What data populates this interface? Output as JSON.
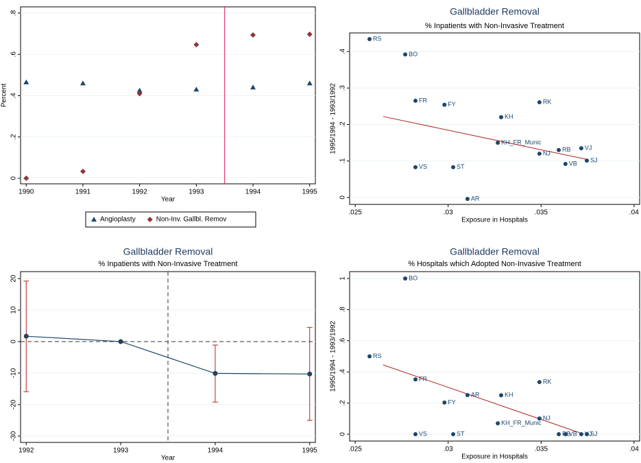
{
  "chart_data": [
    {
      "type": "scatter",
      "x_label": "Year",
      "y_label": "Percent",
      "x": [
        1990,
        1991,
        1992,
        1993,
        1994,
        1995
      ],
      "series": [
        {
          "name": "Angioplasty",
          "color": "#1a476f",
          "marker": "triangle",
          "values": [
            0.465,
            0.46,
            0.425,
            0.43,
            0.44,
            0.46
          ]
        },
        {
          "name": "Non-Inv. Gallbl. Remov",
          "color": "#90353b",
          "marker": "diamond",
          "values": [
            0,
            0.033,
            0.41,
            0.647,
            0.694,
            0.697
          ]
        }
      ],
      "xlim": [
        1989.9,
        1995.1
      ],
      "xticks": [
        1990,
        1991,
        1992,
        1993,
        1994,
        1995
      ],
      "ylim": [
        -0.027,
        0.83
      ],
      "yticks": [
        0,
        {
          "value": 0.2,
          "label": ".2"
        },
        {
          "value": 0.4,
          "label": ".4"
        },
        {
          "value": 0.6,
          "label": ".6"
        },
        {
          "value": 0.8,
          "label": ".8"
        }
      ],
      "vline": 1993.5,
      "vline_color": "#e0115f",
      "grid": true,
      "legend": "bottom"
    },
    {
      "type": "scatter",
      "title": "Gallbladder Removal",
      "subtitle": "% Inpatients with Non-Invasive Treatment",
      "x_label": "Exposure in Hospitals",
      "y_label": "1995/1994 - 1993/1992",
      "color": "#1a476f",
      "point_labels": [
        "RS",
        "BO",
        "FR",
        "FY",
        "KH",
        "RK",
        "KH_FR_Munic",
        "RB",
        "VJ",
        "NJ",
        "SJ",
        "VB",
        "VS",
        "ST",
        "AR"
      ],
      "x": [
        0.02577,
        0.02769,
        0.02824,
        0.0298,
        0.03285,
        0.03491,
        0.03267,
        0.03595,
        0.03716,
        0.03491,
        0.03746,
        0.03631,
        0.02824,
        0.03027,
        0.03104
      ],
      "values": [
        0.434,
        0.392,
        0.265,
        0.254,
        0.22,
        0.261,
        0.15,
        0.13,
        0.135,
        0.12,
        0.101,
        0.092,
        0.083,
        0.083,
        -0.004
      ],
      "fit": {
        "color": "#b22222",
        "x": [
          0.0265,
          0.0374
        ],
        "y": [
          0.222,
          0.105
        ]
      },
      "xlim": [
        0.0247,
        0.0403
      ],
      "xticks": [
        {
          "value": 0.025,
          "label": ".025"
        },
        {
          "value": 0.03,
          "label": ".03"
        },
        {
          "value": 0.035,
          "label": ".035"
        },
        {
          "value": 0.04,
          "label": ".04"
        }
      ],
      "ylim": [
        -0.019,
        0.451
      ],
      "yticks": [
        0,
        {
          "value": 0.1,
          "label": ".1"
        },
        {
          "value": 0.2,
          "label": ".2"
        },
        {
          "value": 0.3,
          "label": ".3"
        },
        {
          "value": 0.4,
          "label": ".4"
        }
      ],
      "grid": true
    },
    {
      "type": "line",
      "title": "Gallbladder Removal",
      "subtitle": "% Inpatients with Non-Invasive Treatment",
      "x_label": "Year",
      "x": [
        1992,
        1993,
        1994,
        1995
      ],
      "series": [
        {
          "color": "#1a476f",
          "values": [
            1.7,
            0,
            -10.1,
            -10.3
          ],
          "ci_lower": [
            -15.9,
            null,
            -19.2,
            -25
          ],
          "ci_upper": [
            19.2,
            null,
            -1.1,
            4.5
          ],
          "ci_color": "#b22222"
        }
      ],
      "xlim": [
        1991.94,
        1995.06
      ],
      "xticks": [
        1992,
        1993,
        1994,
        1995
      ],
      "ylim": [
        -32,
        22.2
      ],
      "yticks": [
        -30,
        -20,
        -10,
        0,
        10,
        20
      ],
      "vline": 1993.5,
      "hline": 0,
      "grid": true
    },
    {
      "type": "scatter",
      "title": "Gallbladder Removal",
      "subtitle": "% Hospitals which Adopted Non-Invasive Treatment",
      "x_label": "Exposure in Hospitals",
      "y_label": "1995/1994 - 1993/1992",
      "color": "#1a476f",
      "point_labels": [
        "BO",
        "RS",
        "FR",
        "AR",
        "KH",
        "FY",
        "RK",
        "NJ",
        "KH_FR_Munic",
        "VS",
        "ST",
        "RB",
        "VB",
        "VJ",
        "SJ"
      ],
      "x": [
        0.02769,
        0.02577,
        0.02824,
        0.03104,
        0.03285,
        0.0298,
        0.03491,
        0.03491,
        0.03267,
        0.02824,
        0.03027,
        0.03595,
        0.03631,
        0.03716,
        0.03746
      ],
      "values": [
        1,
        0.5,
        0.352,
        0.251,
        0.25,
        0.203,
        0.335,
        0.101,
        0.07,
        0,
        0,
        0,
        0,
        0,
        0
      ],
      "fit": {
        "color": "#b22222",
        "x": [
          0.0265,
          0.0373
        ],
        "y": [
          0.445,
          0
        ]
      },
      "xlim": [
        0.0247,
        0.0403
      ],
      "xticks": [
        {
          "value": 0.025,
          "label": ".025"
        },
        {
          "value": 0.03,
          "label": ".03"
        },
        {
          "value": 0.035,
          "label": ".035"
        },
        {
          "value": 0.04,
          "label": ".04"
        }
      ],
      "ylim": [
        -0.044,
        1.044
      ],
      "yticks": [
        0,
        {
          "value": 0.2,
          "label": ".2"
        },
        {
          "value": 0.4,
          "label": ".4"
        },
        {
          "value": 0.6,
          "label": ".6"
        },
        {
          "value": 0.8,
          "label": ".8"
        },
        1
      ],
      "grid": true
    }
  ]
}
